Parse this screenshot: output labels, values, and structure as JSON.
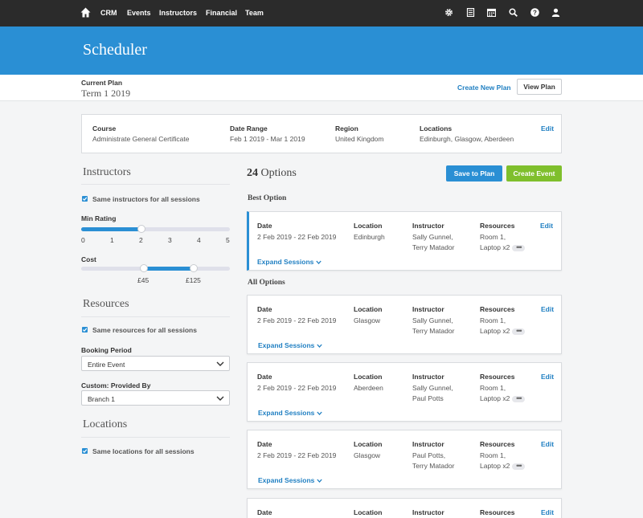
{
  "nav": {
    "items": [
      "CRM",
      "Events",
      "Instructors",
      "Financial",
      "Team"
    ],
    "icons": [
      "gear-icon",
      "report-icon",
      "calendar-icon",
      "search-icon",
      "help-icon",
      "user-icon"
    ]
  },
  "header": {
    "title": "Scheduler"
  },
  "plan": {
    "label": "Current Plan",
    "value": "Term 1 2019",
    "create_link": "Create New Plan",
    "view_button": "View Plan"
  },
  "summary": {
    "course_label": "Course",
    "course_value": "Administrate General Certificate",
    "date_label": "Date Range",
    "date_value": "Feb 1 2019 - Mar 1 2019",
    "region_label": "Region",
    "region_value": "United Kingdom",
    "locations_label": "Locations",
    "locations_value": "Edinburgh, Glasgow, Aberdeen",
    "edit": "Edit"
  },
  "instructors": {
    "title": "Instructors",
    "same_label": "Same instructors for all sessions",
    "same_checked": true,
    "min_rating_label": "Min Rating",
    "min_rating_ticks": [
      "0",
      "1",
      "2",
      "3",
      "4",
      "5"
    ],
    "min_rating_value": 2,
    "cost_label": "Cost",
    "cost_min": "£45",
    "cost_max": "£125"
  },
  "resources": {
    "title": "Resources",
    "same_label": "Same resources for all sessions",
    "same_checked": true,
    "booking_label": "Booking Period",
    "booking_value": "Entire Event",
    "custom_label": "Custom: Provided By",
    "custom_value": "Branch 1"
  },
  "locations": {
    "title": "Locations",
    "same_label": "Same locations for all sessions",
    "same_checked": true
  },
  "options": {
    "count": "24",
    "count_label": "Options",
    "save_button": "Save to Plan",
    "create_button": "Create Event",
    "best_title": "Best Option",
    "all_title": "All Options",
    "headers": {
      "date": "Date",
      "location": "Location",
      "instructor": "Instructor",
      "resources": "Resources",
      "edit": "Edit",
      "expand": "Expand Sessions"
    },
    "best": {
      "date": "2 Feb 2019 - 22 Feb 2019",
      "location": "Edinburgh",
      "instructor1": "Sally Gunnel,",
      "instructor2": "Terry Matador",
      "res1": "Room 1,",
      "res2": "Laptop x2"
    },
    "list": [
      {
        "date": "2 Feb 2019 - 22 Feb 2019",
        "location": "Glasgow",
        "instructor1": "Sally Gunnel,",
        "instructor2": "Terry Matador",
        "res1": "Room 1,",
        "res2": "Laptop x2"
      },
      {
        "date": "2 Feb 2019 - 22 Feb 2019",
        "location": "Aberdeen",
        "instructor1": "Sally Gunnel,",
        "instructor2": "Paul Potts",
        "res1": "Room 1,",
        "res2": "Laptop x2"
      },
      {
        "date": "2 Feb 2019 - 22 Feb 2019",
        "location": "Glasgow",
        "instructor1": "Paul Potts,",
        "instructor2": "Terry Matador",
        "res1": "Room 1,",
        "res2": "Laptop x2"
      }
    ]
  },
  "colors": {
    "brand": "#2a8fd4",
    "nav": "#2b2b2b",
    "create": "#7fbf2c",
    "link": "#1f7fc2"
  }
}
